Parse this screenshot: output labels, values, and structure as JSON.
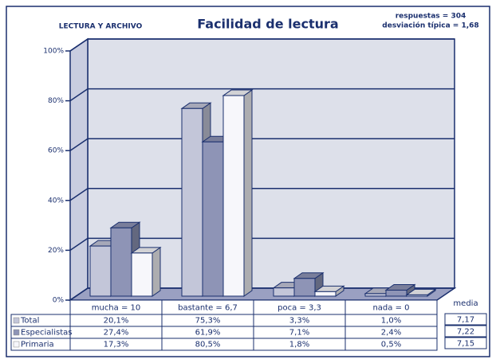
{
  "chart_data": {
    "type": "bar3d",
    "subtitle": "LECTURA Y ARCHIVO",
    "title": "Facilidad de lectura",
    "annotations": [
      "respuestas = 304",
      "desviación típica = 1,68"
    ],
    "categories": [
      "mucha = 10",
      "bastante = 6,7",
      "poca = 3,3",
      "nada = 0"
    ],
    "series": [
      {
        "name": "Total",
        "color": "#c3c6d9",
        "values": [
          20.1,
          75.3,
          3.3,
          1.0
        ],
        "value_labels": [
          "20,1%",
          "75,3%",
          "3,3%",
          "1,0%"
        ]
      },
      {
        "name": "Especialistas",
        "color": "#8e94b6",
        "values": [
          27.4,
          61.9,
          7.1,
          2.4
        ],
        "value_labels": [
          "27,4%",
          "61,9%",
          "7,1%",
          "2,4%"
        ]
      },
      {
        "name": "Primaria",
        "color": "#f7f7fb",
        "values": [
          17.3,
          80.5,
          1.8,
          0.5
        ],
        "value_labels": [
          "17,3%",
          "80,5%",
          "1,8%",
          "0,5%"
        ]
      }
    ],
    "media": {
      "label": "media",
      "values": [
        7.17,
        7.22,
        7.15
      ],
      "value_labels": [
        "7,17",
        "7,22",
        "7,15"
      ]
    },
    "ylim": [
      0,
      100
    ],
    "yticks": [
      {
        "value": 0,
        "label": "0%"
      },
      {
        "value": 20,
        "label": "20%"
      },
      {
        "value": 40,
        "label": "40%"
      },
      {
        "value": 60,
        "label": "60%"
      },
      {
        "value": 80,
        "label": "80%"
      },
      {
        "value": 100,
        "label": "100%"
      }
    ],
    "grid": true
  }
}
